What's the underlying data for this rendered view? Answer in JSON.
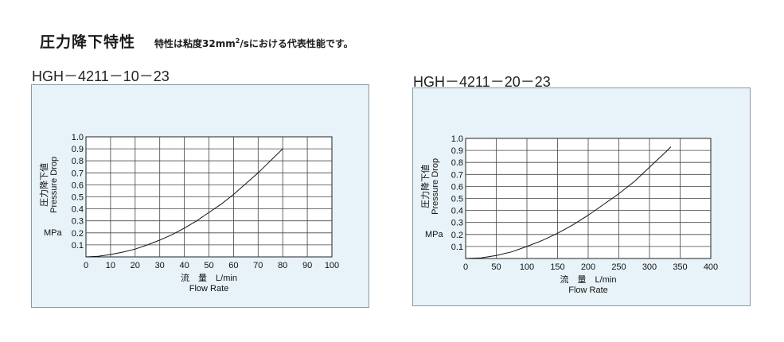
{
  "header": {
    "title": "圧力降下特性",
    "subtitle_prefix": "特性は粘度32mm",
    "subtitle_sup": "2",
    "subtitle_suffix": "/sにおける代表性能です。"
  },
  "chart_data": [
    {
      "type": "line",
      "title": "HGH－4211－10－23",
      "xlabel_jp": "流　量　L/min",
      "xlabel_en": "Flow Rate",
      "ylabel_jp": "圧力降下値",
      "ylabel_en": "Pressure Drop",
      "yunit": "MPa",
      "xlim": [
        0,
        100
      ],
      "ylim": [
        0,
        1.0
      ],
      "xticks": [
        "0",
        "10",
        "20",
        "30",
        "40",
        "50",
        "60",
        "70",
        "80",
        "90",
        "100"
      ],
      "yticks": [
        "0.1",
        "0.2",
        "0.3",
        "0.4",
        "0.5",
        "0.6",
        "0.7",
        "0.8",
        "0.9",
        "1.0"
      ],
      "grid": true,
      "series": [
        {
          "x": [
            0,
            5,
            10,
            15,
            20,
            25,
            30,
            35,
            40,
            45,
            50,
            55,
            60,
            65,
            70,
            75,
            80
          ],
          "y": [
            0,
            0.005,
            0.02,
            0.04,
            0.065,
            0.1,
            0.14,
            0.185,
            0.24,
            0.3,
            0.37,
            0.44,
            0.52,
            0.61,
            0.7,
            0.8,
            0.9
          ]
        }
      ]
    },
    {
      "type": "line",
      "title": "HGH－4211－20－23",
      "xlabel_jp": "流　量　L/min",
      "xlabel_en": "Flow Rate",
      "ylabel_jp": "圧力降下値",
      "ylabel_en": "Pressure Drop",
      "yunit": "MPa",
      "xlim": [
        0,
        400
      ],
      "ylim": [
        0,
        1.0
      ],
      "xticks": [
        "0",
        "50",
        "100",
        "150",
        "200",
        "250",
        "300",
        "350",
        "400"
      ],
      "yticks": [
        "0.1",
        "0.2",
        "0.3",
        "0.4",
        "0.5",
        "0.6",
        "0.7",
        "0.8",
        "0.9",
        "1.0"
      ],
      "grid": true,
      "series": [
        {
          "x": [
            0,
            25,
            50,
            75,
            100,
            125,
            150,
            175,
            200,
            225,
            250,
            275,
            300,
            325,
            335
          ],
          "y": [
            0,
            0.005,
            0.025,
            0.055,
            0.1,
            0.15,
            0.21,
            0.28,
            0.36,
            0.45,
            0.54,
            0.64,
            0.76,
            0.88,
            0.93
          ]
        }
      ]
    }
  ]
}
